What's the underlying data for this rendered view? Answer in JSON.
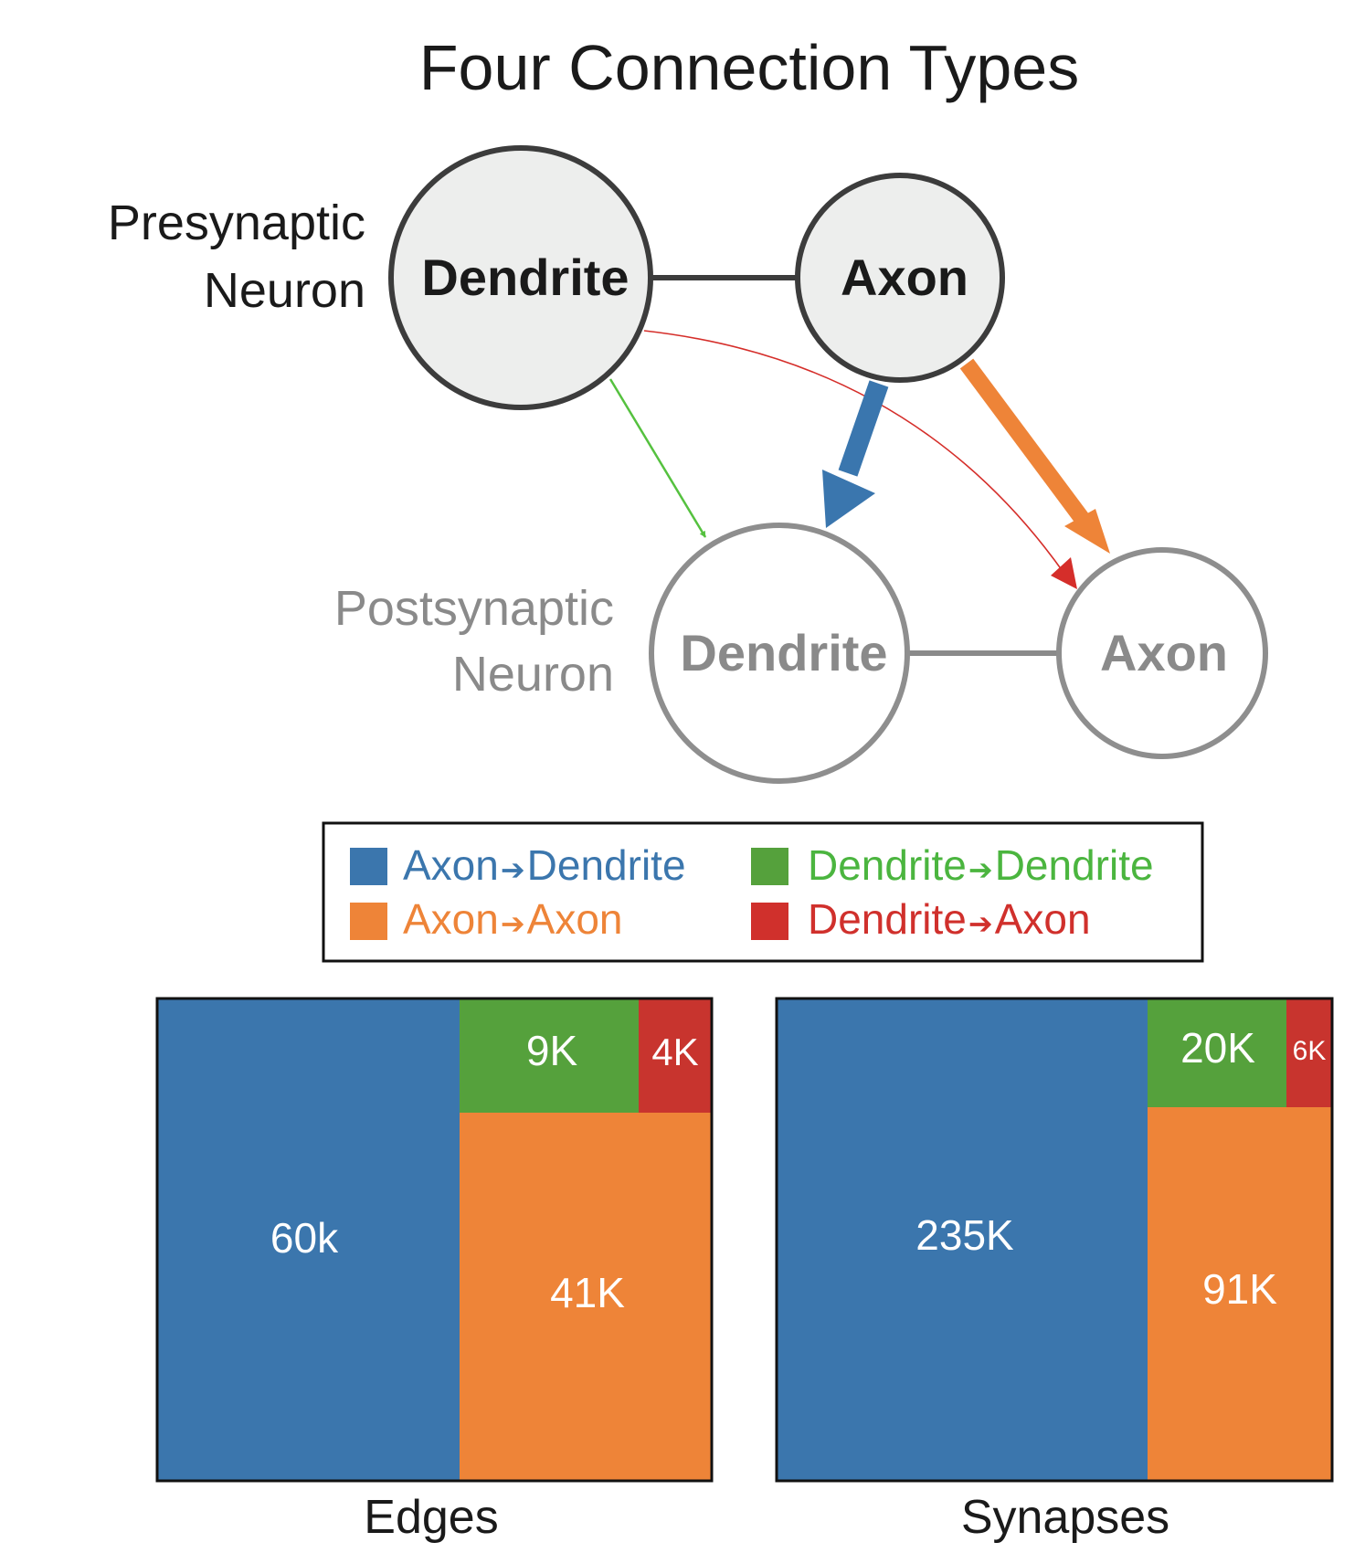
{
  "title": "Four Connection Types",
  "presynaptic": {
    "label_line1": "Presynaptic",
    "label_line2": "Neuron",
    "dendrite": "Dendrite",
    "axon": "Axon"
  },
  "postsynaptic": {
    "label_line1": "Postsynaptic",
    "label_line2": "Neuron",
    "dendrite": "Dendrite",
    "axon": "Axon"
  },
  "colors": {
    "axon_dendrite": "#3b76ad",
    "axon_axon": "#ee8438",
    "dendrite_dendrite": "#55a13c",
    "dendrite_axon": "#d0302c",
    "legend_green_text": "#4bb53f"
  },
  "legend": {
    "axon_dendrite": {
      "from": "Axon",
      "to": "Dendrite"
    },
    "axon_axon": {
      "from": "Axon",
      "to": "Axon"
    },
    "dendrite_dendrite": {
      "from": "Dendrite",
      "to": "Dendrite"
    },
    "dendrite_axon": {
      "from": "Dendrite",
      "to": "Axon"
    }
  },
  "chart_data": [
    {
      "type": "treemap",
      "title": "Edges",
      "cells": [
        {
          "type": "Axon→Dendrite",
          "label": "60k"
        },
        {
          "type": "Dendrite→Dendrite",
          "label": "9K"
        },
        {
          "type": "Dendrite→Axon",
          "label": "4K"
        },
        {
          "type": "Axon→Axon",
          "label": "41K"
        }
      ]
    },
    {
      "type": "treemap",
      "title": "Synapses",
      "cells": [
        {
          "type": "Axon→Dendrite",
          "label": "235K"
        },
        {
          "type": "Dendrite→Dendrite",
          "label": "20K"
        },
        {
          "type": "Dendrite→Axon",
          "label": "6K"
        },
        {
          "type": "Axon→Axon",
          "label": "91K"
        }
      ]
    }
  ]
}
